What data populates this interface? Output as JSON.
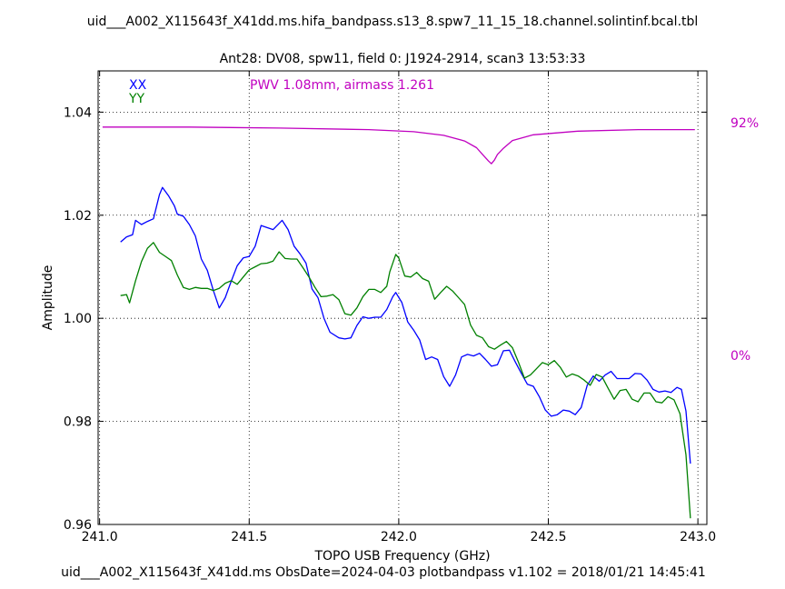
{
  "header": {
    "title": "uid___A002_X115643f_X41dd.ms.hifa_bandpass.s13_8.spw7_11_15_18.channel.solintinf.bcal.tbl",
    "subtitle": "Ant28: DV08,  spw11,  field 0: J1924-2914,  scan3  13:53:33"
  },
  "footer": {
    "text": "uid___A002_X115643f_X41dd.ms  ObsDate=2024-04-03   plotbandpass v1.102 = 2018/01/21 14:45:41"
  },
  "annotations": {
    "pwv_text": "PWV 1.08mm, airmass 1.261",
    "right_axis_top": "92%",
    "right_axis_bottom": "0%"
  },
  "colors": {
    "xx": "#0000ff",
    "yy": "#008000",
    "atm": "#c000c0"
  },
  "chart_data": {
    "type": "line",
    "title": "Ant28: DV08,  spw11,  field 0: J1924-2914,  scan3  13:53:33",
    "xlabel": "TOPO USB Frequency (GHz)",
    "ylabel": "Amplitude",
    "xlim": [
      240.995,
      243.03
    ],
    "ylim": [
      0.96,
      1.048
    ],
    "x_ticks": [
      "241.0",
      "241.5",
      "242.0",
      "242.5",
      "243.0"
    ],
    "y_ticks": [
      "0.96",
      "0.98",
      "1.00",
      "1.02",
      "1.04"
    ],
    "grid": true,
    "legend": "top-left",
    "series": [
      {
        "name": "XX",
        "color": "#0000ff",
        "points": [
          [
            241.07,
            1.0148
          ],
          [
            241.09,
            1.0158
          ],
          [
            241.11,
            1.0162
          ],
          [
            241.12,
            1.019
          ],
          [
            241.14,
            1.0182
          ],
          [
            241.16,
            1.0188
          ],
          [
            241.18,
            1.0193
          ],
          [
            241.2,
            1.024
          ],
          [
            241.21,
            1.0254
          ],
          [
            241.23,
            1.0238
          ],
          [
            241.25,
            1.0218
          ],
          [
            241.26,
            1.0202
          ],
          [
            241.28,
            1.0198
          ],
          [
            241.3,
            1.0182
          ],
          [
            241.32,
            1.016
          ],
          [
            241.34,
            1.0115
          ],
          [
            241.36,
            1.0093
          ],
          [
            241.38,
            1.0054
          ],
          [
            241.4,
            1.002
          ],
          [
            241.42,
            1.004
          ],
          [
            241.44,
            1.0072
          ],
          [
            241.46,
            1.0102
          ],
          [
            241.48,
            1.0117
          ],
          [
            241.5,
            1.012
          ],
          [
            241.52,
            1.014
          ],
          [
            241.54,
            1.018
          ],
          [
            241.56,
            1.0176
          ],
          [
            241.58,
            1.0172
          ],
          [
            241.61,
            1.019
          ],
          [
            241.63,
            1.0172
          ],
          [
            241.65,
            1.014
          ],
          [
            241.67,
            1.0125
          ],
          [
            241.69,
            1.0107
          ],
          [
            241.71,
            1.0057
          ],
          [
            241.73,
            1.004
          ],
          [
            241.75,
            1.0
          ],
          [
            241.77,
            0.9973
          ],
          [
            241.8,
            0.9962
          ],
          [
            241.82,
            0.996
          ],
          [
            241.84,
            0.9962
          ],
          [
            241.86,
            0.9986
          ],
          [
            241.88,
            1.0003
          ],
          [
            241.9,
            1.0
          ],
          [
            241.92,
            1.0002
          ],
          [
            241.94,
            1.0002
          ],
          [
            241.96,
            1.0017
          ],
          [
            241.98,
            1.0042
          ],
          [
            241.99,
            1.005
          ],
          [
            242.01,
            1.0031
          ],
          [
            242.03,
            0.9993
          ],
          [
            242.05,
            0.9977
          ],
          [
            242.07,
            0.9958
          ],
          [
            242.09,
            0.992
          ],
          [
            242.11,
            0.9925
          ],
          [
            242.13,
            0.992
          ],
          [
            242.15,
            0.9887
          ],
          [
            242.17,
            0.9868
          ],
          [
            242.19,
            0.989
          ],
          [
            242.21,
            0.9925
          ],
          [
            242.23,
            0.993
          ],
          [
            242.25,
            0.9927
          ],
          [
            242.27,
            0.9932
          ],
          [
            242.29,
            0.992
          ],
          [
            242.31,
            0.9907
          ],
          [
            242.33,
            0.991
          ],
          [
            242.35,
            0.9937
          ],
          [
            242.37,
            0.9938
          ],
          [
            242.39,
            0.9915
          ],
          [
            242.41,
            0.9893
          ],
          [
            242.43,
            0.9872
          ],
          [
            242.45,
            0.9868
          ],
          [
            242.47,
            0.9848
          ],
          [
            242.49,
            0.9822
          ],
          [
            242.51,
            0.981
          ],
          [
            242.53,
            0.9813
          ],
          [
            242.55,
            0.9822
          ],
          [
            242.57,
            0.982
          ],
          [
            242.59,
            0.9813
          ],
          [
            242.61,
            0.9827
          ],
          [
            242.63,
            0.987
          ],
          [
            242.65,
            0.9888
          ],
          [
            242.67,
            0.9878
          ],
          [
            242.69,
            0.989
          ],
          [
            242.71,
            0.9897
          ],
          [
            242.73,
            0.9883
          ],
          [
            242.75,
            0.9883
          ],
          [
            242.77,
            0.9883
          ],
          [
            242.79,
            0.9893
          ],
          [
            242.81,
            0.9892
          ],
          [
            242.83,
            0.988
          ],
          [
            242.85,
            0.9862
          ],
          [
            242.87,
            0.9857
          ],
          [
            242.89,
            0.9859
          ],
          [
            242.91,
            0.9856
          ],
          [
            242.93,
            0.9866
          ],
          [
            242.945,
            0.9862
          ],
          [
            242.96,
            0.982
          ],
          [
            242.975,
            0.9718
          ]
        ]
      },
      {
        "name": "YY",
        "color": "#008000",
        "points": [
          [
            241.07,
            1.0044
          ],
          [
            241.09,
            1.0046
          ],
          [
            241.1,
            1.003
          ],
          [
            241.12,
            1.0073
          ],
          [
            241.14,
            1.011
          ],
          [
            241.16,
            1.0136
          ],
          [
            241.18,
            1.0147
          ],
          [
            241.2,
            1.0128
          ],
          [
            241.22,
            1.012
          ],
          [
            241.24,
            1.0112
          ],
          [
            241.26,
            1.0084
          ],
          [
            241.28,
            1.006
          ],
          [
            241.3,
            1.0056
          ],
          [
            241.32,
            1.006
          ],
          [
            241.34,
            1.0058
          ],
          [
            241.36,
            1.0058
          ],
          [
            241.38,
            1.0054
          ],
          [
            241.4,
            1.0058
          ],
          [
            241.42,
            1.0068
          ],
          [
            241.44,
            1.0073
          ],
          [
            241.46,
            1.0066
          ],
          [
            241.48,
            1.008
          ],
          [
            241.5,
            1.0094
          ],
          [
            241.52,
            1.01
          ],
          [
            241.54,
            1.0106
          ],
          [
            241.56,
            1.0107
          ],
          [
            241.58,
            1.0111
          ],
          [
            241.6,
            1.0129
          ],
          [
            241.62,
            1.0116
          ],
          [
            241.64,
            1.0115
          ],
          [
            241.66,
            1.0115
          ],
          [
            241.68,
            1.0098
          ],
          [
            241.7,
            1.008
          ],
          [
            241.72,
            1.006
          ],
          [
            241.74,
            1.0042
          ],
          [
            241.76,
            1.0043
          ],
          [
            241.78,
            1.0046
          ],
          [
            241.8,
            1.0036
          ],
          [
            241.82,
            1.0009
          ],
          [
            241.84,
            1.0006
          ],
          [
            241.86,
            1.002
          ],
          [
            241.88,
            1.0042
          ],
          [
            241.9,
            1.0056
          ],
          [
            241.92,
            1.0056
          ],
          [
            241.94,
            1.005
          ],
          [
            241.96,
            1.0062
          ],
          [
            241.97,
            1.009
          ],
          [
            241.99,
            1.0124
          ],
          [
            242.0,
            1.0117
          ],
          [
            242.02,
            1.0082
          ],
          [
            242.04,
            1.008
          ],
          [
            242.06,
            1.0089
          ],
          [
            242.08,
            1.0077
          ],
          [
            242.1,
            1.0072
          ],
          [
            242.12,
            1.0037
          ],
          [
            242.14,
            1.005
          ],
          [
            242.16,
            1.0062
          ],
          [
            242.18,
            1.0053
          ],
          [
            242.2,
            1.004
          ],
          [
            242.22,
            1.0027
          ],
          [
            242.24,
            0.9987
          ],
          [
            242.26,
            0.9967
          ],
          [
            242.28,
            0.9962
          ],
          [
            242.3,
            0.9945
          ],
          [
            242.32,
            0.994
          ],
          [
            242.34,
            0.9948
          ],
          [
            242.36,
            0.9955
          ],
          [
            242.38,
            0.9943
          ],
          [
            242.4,
            0.9915
          ],
          [
            242.42,
            0.9884
          ],
          [
            242.44,
            0.989
          ],
          [
            242.46,
            0.9902
          ],
          [
            242.48,
            0.9914
          ],
          [
            242.5,
            0.991
          ],
          [
            242.52,
            0.9918
          ],
          [
            242.54,
            0.9905
          ],
          [
            242.56,
            0.9886
          ],
          [
            242.58,
            0.9892
          ],
          [
            242.6,
            0.9888
          ],
          [
            242.62,
            0.988
          ],
          [
            242.64,
            0.987
          ],
          [
            242.66,
            0.9891
          ],
          [
            242.68,
            0.9886
          ],
          [
            242.7,
            0.9864
          ],
          [
            242.72,
            0.9843
          ],
          [
            242.74,
            0.986
          ],
          [
            242.76,
            0.9862
          ],
          [
            242.78,
            0.9843
          ],
          [
            242.8,
            0.9838
          ],
          [
            242.82,
            0.9855
          ],
          [
            242.84,
            0.9855
          ],
          [
            242.86,
            0.9838
          ],
          [
            242.88,
            0.9836
          ],
          [
            242.9,
            0.9848
          ],
          [
            242.92,
            0.9842
          ],
          [
            242.94,
            0.9815
          ],
          [
            242.96,
            0.9735
          ],
          [
            242.975,
            0.9612
          ]
        ]
      },
      {
        "name": "",
        "color": "#c000c0",
        "points": [
          [
            241.01,
            1.0371
          ],
          [
            241.3,
            1.0371
          ],
          [
            241.6,
            1.0369
          ],
          [
            241.9,
            1.0366
          ],
          [
            242.05,
            1.0362
          ],
          [
            242.15,
            1.0355
          ],
          [
            242.22,
            1.0344
          ],
          [
            242.26,
            1.0331
          ],
          [
            242.28,
            1.0318
          ],
          [
            242.3,
            1.0305
          ],
          [
            242.31,
            1.03
          ],
          [
            242.32,
            1.0307
          ],
          [
            242.33,
            1.0318
          ],
          [
            242.35,
            1.033
          ],
          [
            242.38,
            1.0345
          ],
          [
            242.45,
            1.0356
          ],
          [
            242.6,
            1.0363
          ],
          [
            242.8,
            1.0366
          ],
          [
            242.99,
            1.0366
          ]
        ]
      }
    ]
  }
}
